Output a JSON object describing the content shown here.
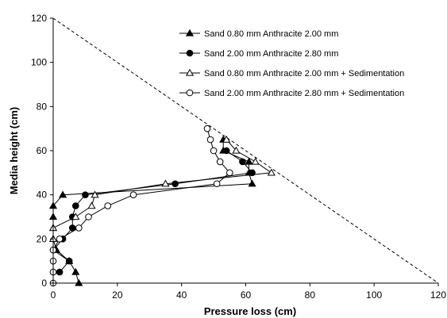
{
  "chart_data": {
    "type": "scatter",
    "title": "",
    "xlabel": "Pressure loss (cm)",
    "ylabel": "Media height (cm)",
    "xlim": [
      0,
      120
    ],
    "ylim": [
      0,
      120
    ],
    "xticks": [
      0,
      20,
      40,
      60,
      80,
      100,
      120
    ],
    "yticks": [
      0,
      20,
      40,
      60,
      80,
      100,
      120
    ],
    "grid": false,
    "legend_position": "top-right",
    "series": [
      {
        "name": "Sand 0.80 mm Anthracite 2.00 mm",
        "marker": "filled-triangle",
        "points": [
          [
            8,
            0
          ],
          [
            7,
            5
          ],
          [
            5,
            10
          ],
          [
            1,
            15
          ],
          [
            0,
            20
          ],
          [
            0,
            25
          ],
          [
            0,
            30
          ],
          [
            0,
            35
          ],
          [
            3,
            40
          ],
          [
            62,
            45
          ],
          [
            61,
            50
          ],
          [
            61,
            55
          ],
          [
            53,
            60
          ],
          [
            53,
            65
          ]
        ]
      },
      {
        "name": "Sand 2.00 mm Anthracite 2.80 mm",
        "marker": "filled-circle",
        "points": [
          [
            2,
            5
          ],
          [
            5,
            10
          ],
          [
            0,
            15
          ],
          [
            3,
            20
          ],
          [
            6,
            25
          ],
          [
            6,
            30
          ],
          [
            7,
            35
          ],
          [
            10,
            40
          ],
          [
            38,
            45
          ],
          [
            62,
            50
          ],
          [
            59,
            55
          ],
          [
            54,
            60
          ]
        ]
      },
      {
        "name": "Sand 0.80 mm Anthracite 2.00 mm + Sedimentation",
        "marker": "open-triangle",
        "points": [
          [
            0,
            20
          ],
          [
            0,
            25
          ],
          [
            7,
            30
          ],
          [
            12,
            35
          ],
          [
            13,
            40
          ],
          [
            35,
            45
          ],
          [
            68,
            50
          ],
          [
            63,
            55
          ],
          [
            57,
            60
          ],
          [
            54,
            65
          ]
        ]
      },
      {
        "name": "Sand 2.00 mm Anthracite 2.80 mm + Sedimentation",
        "marker": "open-circle",
        "points": [
          [
            0,
            0
          ],
          [
            0,
            5
          ],
          [
            0,
            10
          ],
          [
            0,
            15
          ],
          [
            2,
            20
          ],
          [
            8,
            25
          ],
          [
            11,
            30
          ],
          [
            17,
            35
          ],
          [
            25,
            40
          ],
          [
            51,
            45
          ],
          [
            55,
            50
          ],
          [
            52,
            55
          ],
          [
            50,
            60
          ],
          [
            49,
            65
          ],
          [
            48,
            70
          ]
        ]
      }
    ],
    "reference_line": {
      "style": "dashed",
      "points": [
        [
          0,
          120
        ],
        [
          120,
          0
        ]
      ]
    }
  }
}
